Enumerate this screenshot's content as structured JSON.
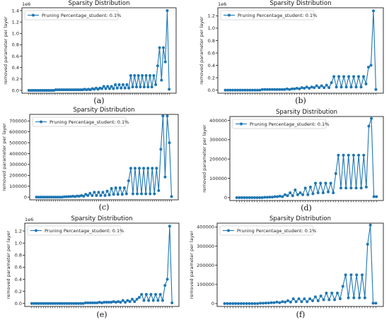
{
  "colors": {
    "series": "#1f77b4",
    "axis": "#000000",
    "legend_border": "#cccccc"
  },
  "chart_data": [
    {
      "label": "(a)",
      "type": "line",
      "title": "Sparsity Distribution",
      "xlabel": "",
      "ylabel": "removed parameter per layer",
      "offset_text": "1e6",
      "scale": 1000000,
      "ylim": [
        -0.05,
        1.45
      ],
      "yticks": [
        0.0,
        0.2,
        0.4,
        0.6,
        0.8,
        1.0,
        1.2,
        1.4
      ],
      "yticklabels": [
        "0.0",
        "0.2",
        "0.4",
        "0.6",
        "0.8",
        "1.0",
        "1.2",
        "1.4"
      ],
      "grid": false,
      "legend_placement": "upper left",
      "series": [
        {
          "name": "Pruning Percentage_student: 0.1%",
          "values": [
            0,
            0,
            0,
            0,
            0,
            0,
            0,
            0,
            0,
            0,
            0,
            0,
            0,
            0,
            0.01,
            0.01,
            0.01,
            0.01,
            0.01,
            0.01,
            0.01,
            0.01,
            0.01,
            0.01,
            0.01,
            0.01,
            0.01,
            0.01,
            0.01,
            0.02,
            0.01,
            0.02,
            0.01,
            0.03,
            0.02,
            0.04,
            0.02,
            0.04,
            0.03,
            0.07,
            0.03,
            0.07,
            0.03,
            0.07,
            0.03,
            0.1,
            0.04,
            0.1,
            0.04,
            0.1,
            0.04,
            0.1,
            0.04,
            0.26,
            0.06,
            0.26,
            0.06,
            0.26,
            0.06,
            0.26,
            0.06,
            0.26,
            0.06,
            0.26,
            0.06,
            0.26,
            0.1,
            0.43,
            0.75,
            0.18,
            0.75,
            0.5,
            1.4,
            0.02
          ]
        }
      ]
    },
    {
      "label": "(b)",
      "type": "line",
      "title": "Sparsity Distribution",
      "xlabel": "",
      "ylabel": "removed parameter per layer",
      "offset_text": "1e6",
      "scale": 1000000,
      "ylim": [
        -0.05,
        1.33
      ],
      "yticks": [
        0.0,
        0.2,
        0.4,
        0.6,
        0.8,
        1.0,
        1.2
      ],
      "yticklabels": [
        "0.0",
        "0.2",
        "0.4",
        "0.6",
        "0.8",
        "1.0",
        "1.2"
      ],
      "grid": false,
      "legend_placement": "upper left",
      "series": [
        {
          "name": "Pruning Percentage_student: 0.1%",
          "values": [
            0,
            0,
            0,
            0,
            0,
            0,
            0,
            0,
            0,
            0,
            0,
            0,
            0,
            0,
            0,
            0.01,
            0.01,
            0.01,
            0.01,
            0.01,
            0.01,
            0.01,
            0.01,
            0.01,
            0.01,
            0.02,
            0.01,
            0.02,
            0.02,
            0.03,
            0.02,
            0.04,
            0.03,
            0.05,
            0.03,
            0.05,
            0.04,
            0.07,
            0.04,
            0.07,
            0.04,
            0.08,
            0.04,
            0.12,
            0.22,
            0.05,
            0.22,
            0.05,
            0.22,
            0.05,
            0.22,
            0.05,
            0.22,
            0.05,
            0.22,
            0.05,
            0.22,
            0.1,
            0.37,
            0.4,
            1.28,
            0.01
          ]
        }
      ]
    },
    {
      "label": "(c)",
      "type": "line",
      "title": "Sparsity Distribution",
      "xlabel": "",
      "ylabel": "removed parameter per layer",
      "offset_text": "",
      "scale": 1,
      "ylim": [
        -25000,
        760000
      ],
      "yticks": [
        0,
        100000,
        200000,
        300000,
        400000,
        500000,
        600000,
        700000
      ],
      "yticklabels": [
        "0",
        "100000",
        "200000",
        "300000",
        "400000",
        "500000",
        "600000",
        "700000"
      ],
      "grid": false,
      "legend_placement": "upper left",
      "series": [
        {
          "name": "Pruning Percentage_student: 0.1%",
          "values": [
            0,
            0,
            0,
            0,
            0,
            0,
            0,
            0,
            0,
            0,
            0,
            0,
            0,
            3000,
            3000,
            5000,
            5000,
            8000,
            5000,
            10000,
            8000,
            15000,
            8000,
            25000,
            15000,
            35000,
            15000,
            45000,
            15000,
            45000,
            15000,
            45000,
            15000,
            55000,
            20000,
            80000,
            25000,
            85000,
            25000,
            85000,
            25000,
            85000,
            30000,
            150000,
            265000,
            30000,
            265000,
            30000,
            265000,
            30000,
            265000,
            30000,
            265000,
            30000,
            265000,
            30000,
            265000,
            60000,
            440000,
            745000,
            185000,
            745000,
            500000,
            5000
          ]
        }
      ]
    },
    {
      "label": "(d)",
      "type": "line",
      "title": "Sparsity Distribution",
      "xlabel": "",
      "ylabel": "removed parameter per layer",
      "offset_text": "",
      "scale": 1,
      "ylim": [
        -15000,
        420000
      ],
      "yticks": [
        0,
        100000,
        200000,
        300000,
        400000
      ],
      "yticklabels": [
        "0",
        "100000",
        "200000",
        "300000",
        "400000"
      ],
      "grid": false,
      "legend_placement": "upper left",
      "series": [
        {
          "name": "Pruning Percentage_student: 0.1%",
          "values": [
            0,
            0,
            0,
            0,
            0,
            0,
            0,
            0,
            0,
            0,
            0,
            2000,
            2000,
            3000,
            3000,
            5000,
            5000,
            8000,
            5000,
            15000,
            10000,
            25000,
            10000,
            40000,
            15000,
            25000,
            15000,
            50000,
            15000,
            55000,
            20000,
            75000,
            25000,
            75000,
            25000,
            75000,
            30000,
            75000,
            25000,
            125000,
            220000,
            50000,
            220000,
            50000,
            220000,
            50000,
            220000,
            50000,
            220000,
            50000,
            220000,
            55000,
            370000,
            410000,
            5000,
            5000
          ]
        }
      ]
    },
    {
      "label": "(e)",
      "type": "line",
      "title": "Sparsity Distribution",
      "xlabel": "",
      "ylabel": "removed parameter per layer",
      "offset_text": "1e6",
      "scale": 1000000,
      "ylim": [
        -0.05,
        1.33
      ],
      "yticks": [
        0.0,
        0.2,
        0.4,
        0.6,
        0.8,
        1.0,
        1.2
      ],
      "yticklabels": [
        "0.0",
        "0.2",
        "0.4",
        "0.6",
        "0.8",
        "1.0",
        "1.2"
      ],
      "grid": false,
      "legend_placement": "upper left",
      "series": [
        {
          "name": "Pruning Percentage_student: 0.1%",
          "values": [
            0,
            0,
            0,
            0,
            0,
            0,
            0,
            0,
            0,
            0,
            0,
            0,
            0,
            0,
            0,
            0,
            0,
            0,
            0,
            0,
            0,
            0,
            0,
            0.01,
            0.01,
            0.01,
            0.01,
            0.01,
            0.01,
            0.02,
            0.01,
            0.02,
            0.02,
            0.02,
            0.02,
            0.03,
            0.02,
            0.03,
            0.02,
            0.05,
            0.02,
            0.05,
            0.03,
            0.07,
            0.03,
            0.07,
            0.1,
            0.15,
            0.05,
            0.15,
            0.05,
            0.15,
            0.05,
            0.15,
            0.05,
            0.15,
            0.05,
            0.3,
            0.4,
            1.28,
            0.01
          ]
        }
      ]
    },
    {
      "label": "(f)",
      "type": "line",
      "title": "Sparsity Distribution",
      "xlabel": "",
      "ylabel": "removed parameter per layer",
      "offset_text": "",
      "scale": 1,
      "ylim": [
        -15000,
        420000
      ],
      "yticks": [
        0,
        100000,
        200000,
        300000,
        400000
      ],
      "yticklabels": [
        "0",
        "100000",
        "200000",
        "300000",
        "400000"
      ],
      "grid": false,
      "legend_placement": "upper left",
      "series": [
        {
          "name": "Pruning Percentage_student: 0.1%",
          "values": [
            0,
            0,
            0,
            0,
            0,
            0,
            0,
            0,
            0,
            0,
            0,
            0,
            0,
            2000,
            2000,
            3000,
            3000,
            5000,
            5000,
            8000,
            5000,
            10000,
            8000,
            15000,
            8000,
            25000,
            10000,
            25000,
            10000,
            25000,
            10000,
            25000,
            15000,
            35000,
            15000,
            40000,
            20000,
            55000,
            20000,
            55000,
            20000,
            55000,
            25000,
            90000,
            150000,
            30000,
            150000,
            30000,
            150000,
            30000,
            150000,
            30000,
            310000,
            410000,
            2000,
            2000
          ]
        }
      ]
    }
  ]
}
